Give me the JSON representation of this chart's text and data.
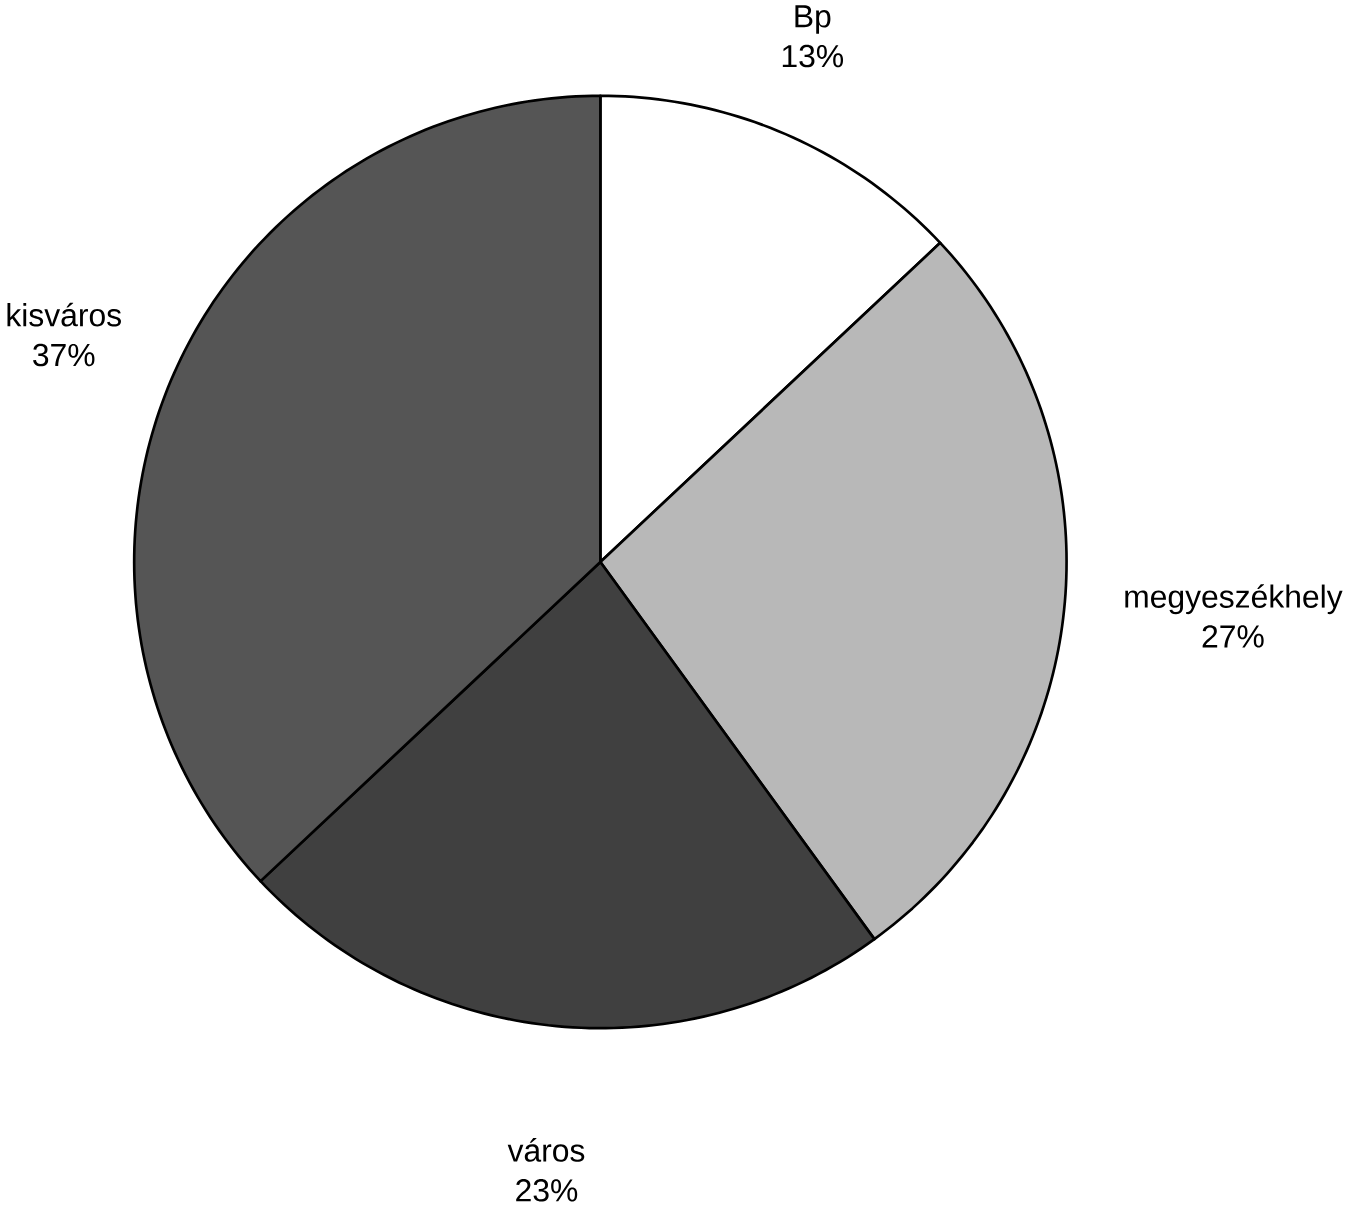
{
  "chart_data": {
    "type": "pie",
    "categories": [
      "Bp",
      "megyeszékhely",
      "város",
      "kisváros"
    ],
    "values": [
      13,
      27,
      23,
      37
    ],
    "value_labels": [
      "13%",
      "27%",
      "23%",
      "37%"
    ],
    "colors": [
      "#ffffff",
      "#b8b8b8",
      "#404040",
      "#555555"
    ]
  }
}
